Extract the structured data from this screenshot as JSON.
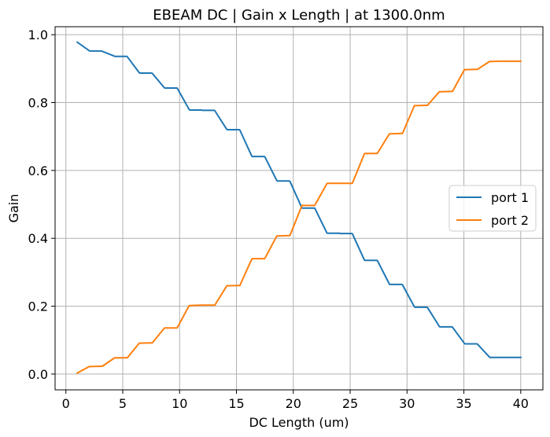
{
  "chart_data": {
    "type": "line",
    "title": "EBEAM DC | Gain x Length | at 1300.0nm",
    "xlabel": "DC Length (um)",
    "ylabel": "Gain",
    "xlim": [
      -0.95,
      41.95
    ],
    "ylim": [
      -0.0465,
      1.0235
    ],
    "xticks": [
      0,
      5,
      10,
      15,
      20,
      25,
      30,
      35,
      40
    ],
    "xtick_labels": [
      "0",
      "5",
      "10",
      "15",
      "20",
      "25",
      "30",
      "35",
      "40"
    ],
    "yticks": [
      0.0,
      0.2,
      0.4,
      0.6,
      0.8,
      1.0
    ],
    "ytick_labels": [
      "0.0",
      "0.2",
      "0.4",
      "0.6",
      "0.8",
      "1.0"
    ],
    "grid": true,
    "legend": {
      "location": "center-right",
      "entries": [
        "port 1",
        "port 2"
      ]
    },
    "x": [
      1.0,
      2.05,
      2.1,
      3.15,
      3.2,
      4.25,
      4.3,
      5.35,
      5.4,
      6.45,
      6.5,
      7.55,
      7.6,
      8.65,
      8.7,
      9.75,
      9.8,
      10.85,
      10.9,
      11.95,
      12.0,
      13.05,
      13.1,
      14.15,
      14.2,
      15.25,
      15.3,
      16.35,
      16.4,
      17.45,
      17.5,
      18.55,
      18.6,
      19.65,
      19.7,
      20.75,
      20.8,
      21.85,
      21.9,
      22.95,
      23.0,
      24.05,
      24.1,
      25.15,
      25.2,
      26.25,
      26.3,
      27.35,
      27.4,
      28.45,
      28.5,
      29.55,
      29.6,
      30.65,
      30.7,
      31.75,
      31.8,
      32.85,
      32.9,
      33.95,
      34.0,
      35.05,
      35.1,
      36.15,
      36.2,
      37.25,
      37.3,
      38.35,
      38.4,
      39.45,
      39.5,
      40.0
    ],
    "series": [
      {
        "name": "port 1",
        "color": "#1f77b4",
        "values": [
          0.978,
          0.953,
          0.952,
          0.952,
          0.951,
          0.937,
          0.936,
          0.936,
          0.935,
          0.888,
          0.887,
          0.887,
          0.886,
          0.844,
          0.843,
          0.843,
          0.842,
          0.779,
          0.778,
          0.778,
          0.777,
          0.777,
          0.776,
          0.721,
          0.72,
          0.72,
          0.719,
          0.642,
          0.641,
          0.641,
          0.64,
          0.57,
          0.569,
          0.569,
          0.568,
          0.49,
          0.489,
          0.489,
          0.488,
          0.416,
          0.415,
          0.415,
          0.414,
          0.414,
          0.413,
          0.336,
          0.335,
          0.335,
          0.334,
          0.265,
          0.264,
          0.264,
          0.263,
          0.198,
          0.197,
          0.197,
          0.196,
          0.14,
          0.139,
          0.139,
          0.138,
          0.09,
          0.089,
          0.089,
          0.088,
          0.05,
          0.049,
          0.049,
          0.049,
          0.049,
          0.049,
          0.049
        ]
      },
      {
        "name": "port 2",
        "color": "#ff7f0e",
        "values": [
          0.003,
          0.022,
          0.022,
          0.023,
          0.023,
          0.047,
          0.048,
          0.048,
          0.048,
          0.091,
          0.091,
          0.092,
          0.092,
          0.135,
          0.136,
          0.136,
          0.137,
          0.202,
          0.202,
          0.203,
          0.203,
          0.203,
          0.203,
          0.26,
          0.26,
          0.261,
          0.261,
          0.339,
          0.34,
          0.34,
          0.341,
          0.407,
          0.407,
          0.408,
          0.408,
          0.496,
          0.497,
          0.497,
          0.498,
          0.561,
          0.562,
          0.562,
          0.562,
          0.562,
          0.563,
          0.649,
          0.65,
          0.65,
          0.651,
          0.708,
          0.708,
          0.709,
          0.709,
          0.791,
          0.791,
          0.792,
          0.792,
          0.832,
          0.832,
          0.833,
          0.833,
          0.897,
          0.897,
          0.898,
          0.898,
          0.921,
          0.921,
          0.922,
          0.922,
          0.922,
          0.922,
          0.922
        ]
      }
    ]
  }
}
